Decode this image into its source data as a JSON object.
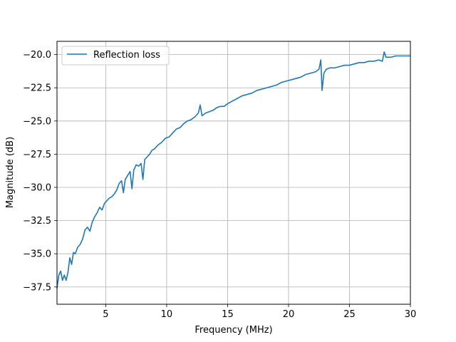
{
  "chart_data": {
    "type": "line",
    "title": "",
    "xlabel": "Frequency (MHz)",
    "ylabel": "Magnitude (dB)",
    "xlim": [
      1,
      30
    ],
    "ylim": [
      -38.8,
      -19.0
    ],
    "grid": true,
    "legend_position": "top-left",
    "x_ticks": [
      5,
      10,
      15,
      20,
      25,
      30
    ],
    "x_tick_labels": [
      "5",
      "10",
      "15",
      "20",
      "25",
      "30"
    ],
    "y_ticks": [
      -37.5,
      -35.0,
      -32.5,
      -30.0,
      -27.5,
      -25.0,
      -22.5,
      -20.0
    ],
    "y_tick_labels": [
      "−37.5",
      "−35.0",
      "−32.5",
      "−30.0",
      "−27.5",
      "−25.0",
      "−22.5",
      "−20.0"
    ],
    "series": [
      {
        "name": "Reflection loss",
        "color": "#1f77b4",
        "x": [
          1.0,
          1.15,
          1.3,
          1.45,
          1.6,
          1.75,
          1.9,
          2.05,
          2.2,
          2.35,
          2.5,
          2.7,
          2.9,
          3.1,
          3.3,
          3.5,
          3.7,
          3.9,
          4.1,
          4.3,
          4.5,
          4.7,
          4.9,
          5.1,
          5.3,
          5.5,
          5.7,
          5.9,
          6.1,
          6.3,
          6.45,
          6.6,
          6.8,
          7.0,
          7.15,
          7.3,
          7.5,
          7.7,
          7.9,
          8.05,
          8.2,
          8.4,
          8.6,
          8.8,
          9.0,
          9.3,
          9.6,
          9.9,
          10.2,
          10.5,
          10.8,
          11.1,
          11.4,
          11.7,
          12.0,
          12.3,
          12.6,
          12.75,
          12.9,
          13.2,
          13.5,
          13.8,
          14.1,
          14.4,
          14.7,
          15.0,
          15.4,
          15.8,
          16.2,
          16.6,
          17.0,
          17.4,
          17.8,
          18.2,
          18.6,
          19.0,
          19.4,
          19.8,
          20.2,
          20.6,
          21.0,
          21.4,
          21.8,
          22.2,
          22.5,
          22.65,
          22.75,
          22.9,
          23.1,
          23.4,
          23.8,
          24.2,
          24.6,
          25.0,
          25.4,
          25.8,
          26.2,
          26.6,
          27.0,
          27.4,
          27.7,
          27.85,
          28.0,
          28.4,
          28.8,
          29.2,
          29.6,
          30.0
        ],
        "y": [
          -37.6,
          -36.6,
          -36.3,
          -37.0,
          -36.6,
          -37.0,
          -36.4,
          -35.3,
          -35.8,
          -34.9,
          -35.0,
          -34.5,
          -34.3,
          -33.9,
          -33.2,
          -33.0,
          -33.3,
          -32.6,
          -32.2,
          -31.9,
          -31.5,
          -31.7,
          -31.2,
          -31.0,
          -30.8,
          -30.7,
          -30.5,
          -30.2,
          -29.7,
          -29.5,
          -30.4,
          -29.4,
          -29.1,
          -28.8,
          -30.1,
          -28.7,
          -28.3,
          -28.4,
          -28.2,
          -29.4,
          -27.9,
          -27.7,
          -27.5,
          -27.2,
          -27.1,
          -26.8,
          -26.6,
          -26.3,
          -26.2,
          -25.9,
          -25.6,
          -25.5,
          -25.2,
          -25.0,
          -24.9,
          -24.7,
          -24.4,
          -23.8,
          -24.6,
          -24.4,
          -24.3,
          -24.2,
          -24.0,
          -23.9,
          -23.9,
          -23.7,
          -23.5,
          -23.3,
          -23.1,
          -23.0,
          -22.9,
          -22.7,
          -22.6,
          -22.5,
          -22.4,
          -22.3,
          -22.1,
          -22.0,
          -21.9,
          -21.8,
          -21.7,
          -21.5,
          -21.4,
          -21.3,
          -21.1,
          -20.4,
          -22.7,
          -21.4,
          -21.1,
          -21.0,
          -21.0,
          -20.9,
          -20.8,
          -20.8,
          -20.7,
          -20.6,
          -20.6,
          -20.5,
          -20.5,
          -20.4,
          -20.5,
          -19.8,
          -20.2,
          -20.2,
          -20.1,
          -20.1,
          -20.1,
          -20.1
        ]
      }
    ]
  }
}
